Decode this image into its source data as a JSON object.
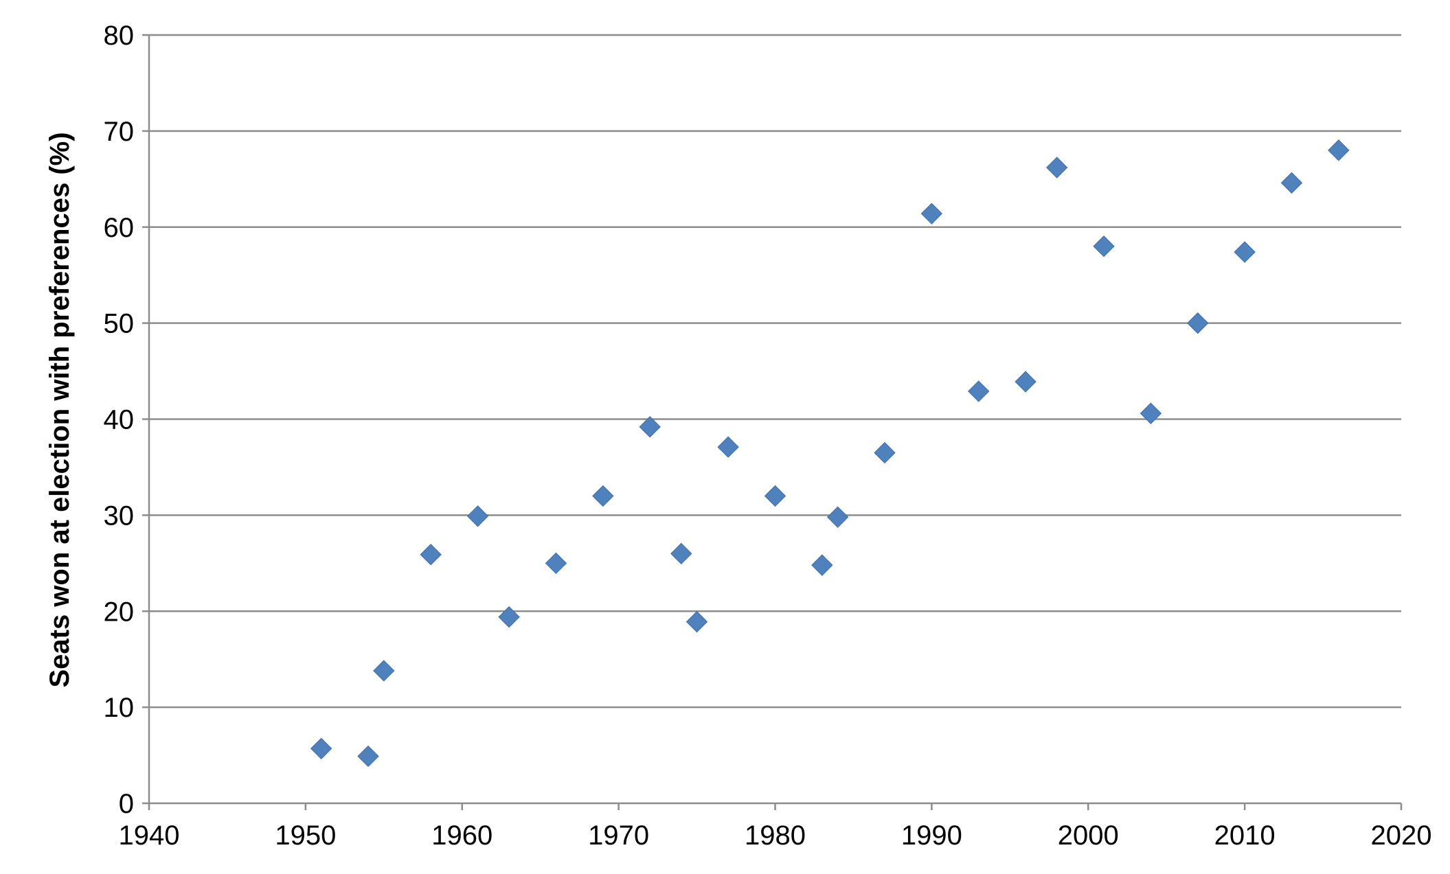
{
  "chart_data": {
    "type": "scatter",
    "title": "",
    "xlabel": "",
    "ylabel": "Seats won at election with preferences (%)",
    "xlim": [
      1940,
      2020
    ],
    "ylim": [
      0,
      80
    ],
    "x_ticks": [
      1940,
      1950,
      1960,
      1970,
      1980,
      1990,
      2000,
      2010,
      2020
    ],
    "y_ticks": [
      0,
      10,
      20,
      30,
      40,
      50,
      60,
      70,
      80
    ],
    "grid": "horizontal",
    "legend": "none",
    "marker": "diamond",
    "colors": {
      "marker": "#4f81bd",
      "grid": "#8c8c8c",
      "axis": "#8c8c8c"
    },
    "series": [
      {
        "x": [
          1951,
          1954,
          1955,
          1958,
          1961,
          1963,
          1966,
          1969,
          1972,
          1974,
          1975,
          1977,
          1980,
          1983,
          1984,
          1987,
          1990,
          1993,
          1996,
          1998,
          2001,
          2004,
          2007,
          2010,
          2013,
          2016
        ],
        "y": [
          5.7,
          4.9,
          13.8,
          25.9,
          29.9,
          19.4,
          25.0,
          32.0,
          39.2,
          26.0,
          18.9,
          37.1,
          32.0,
          24.8,
          29.8,
          36.5,
          61.4,
          42.9,
          43.9,
          66.2,
          58.0,
          40.6,
          50.0,
          57.4,
          64.6,
          68.0
        ]
      }
    ]
  }
}
